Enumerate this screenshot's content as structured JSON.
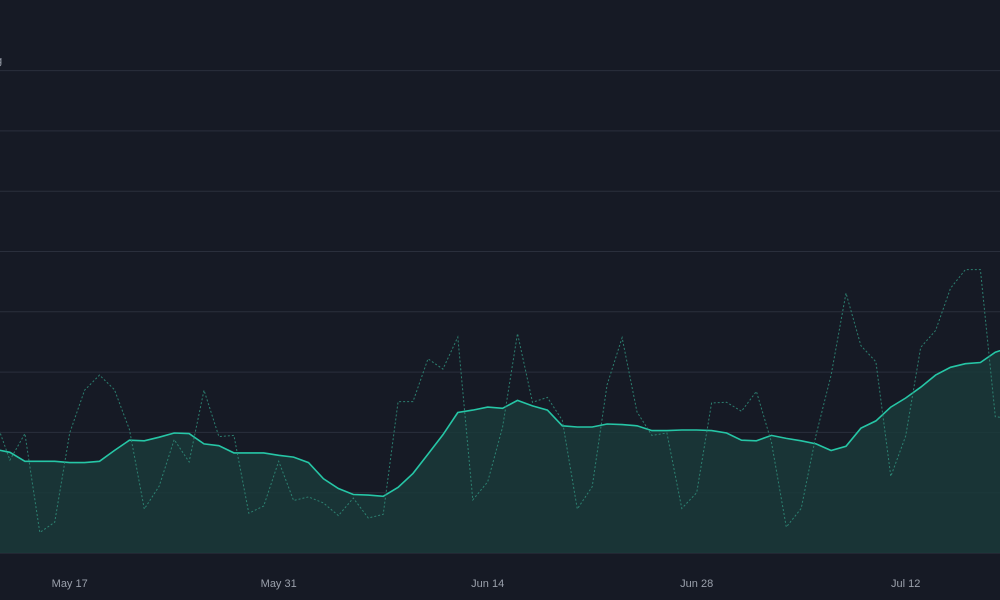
{
  "chart_data": {
    "type": "line",
    "corner_label": "g",
    "x_ticks": [
      {
        "label": "May 17",
        "index": 5
      },
      {
        "label": "May 31",
        "index": 19
      },
      {
        "label": "Jun 14",
        "index": 33
      },
      {
        "label": "Jun 28",
        "index": 47
      },
      {
        "label": "Jul 12",
        "index": 61
      }
    ],
    "ylim": [
      0,
      8
    ],
    "grid": "horizontal",
    "series": [
      {
        "style": "area",
        "color": "#26c6a6",
        "fill": "#1a3a3a",
        "values": [
          1.72,
          1.67,
          1.52,
          1.52,
          1.52,
          1.5,
          1.5,
          1.52,
          1.7,
          1.87,
          1.86,
          1.92,
          1.99,
          1.98,
          1.81,
          1.78,
          1.66,
          1.66,
          1.66,
          1.62,
          1.59,
          1.5,
          1.23,
          1.07,
          0.97,
          0.96,
          0.94,
          1.09,
          1.32,
          1.64,
          1.96,
          2.33,
          2.37,
          2.42,
          2.4,
          2.53,
          2.44,
          2.37,
          2.11,
          2.09,
          2.09,
          2.14,
          2.13,
          2.11,
          2.03,
          2.03,
          2.04,
          2.04,
          2.03,
          1.99,
          1.87,
          1.86,
          1.95,
          1.9,
          1.86,
          1.81,
          1.7,
          1.77,
          2.07,
          2.19,
          2.42,
          2.57,
          2.75,
          2.95,
          3.08,
          3.14,
          3.16,
          3.33,
          3.41,
          3.43
        ]
      },
      {
        "style": "dotted",
        "color": "#2f8a78",
        "values": [
          2.23,
          1.54,
          1.98,
          0.34,
          0.51,
          1.99,
          2.7,
          2.95,
          2.71,
          2.05,
          0.73,
          1.11,
          1.88,
          1.51,
          2.7,
          1.93,
          1.95,
          0.66,
          0.78,
          1.52,
          0.87,
          0.93,
          0.83,
          0.62,
          0.91,
          0.58,
          0.64,
          2.51,
          2.51,
          3.22,
          3.05,
          3.58,
          0.88,
          1.18,
          2.09,
          3.64,
          2.5,
          2.58,
          2.2,
          0.73,
          1.1,
          2.79,
          3.57,
          2.34,
          1.95,
          1.99,
          0.74,
          1.0,
          2.49,
          2.5,
          2.35,
          2.68,
          1.84,
          0.43,
          0.74,
          1.96,
          2.95,
          4.31,
          3.44,
          3.17,
          1.27,
          1.94,
          3.41,
          3.69,
          4.39,
          4.7,
          4.7,
          2.26,
          2.23,
          2.22
        ]
      }
    ]
  }
}
